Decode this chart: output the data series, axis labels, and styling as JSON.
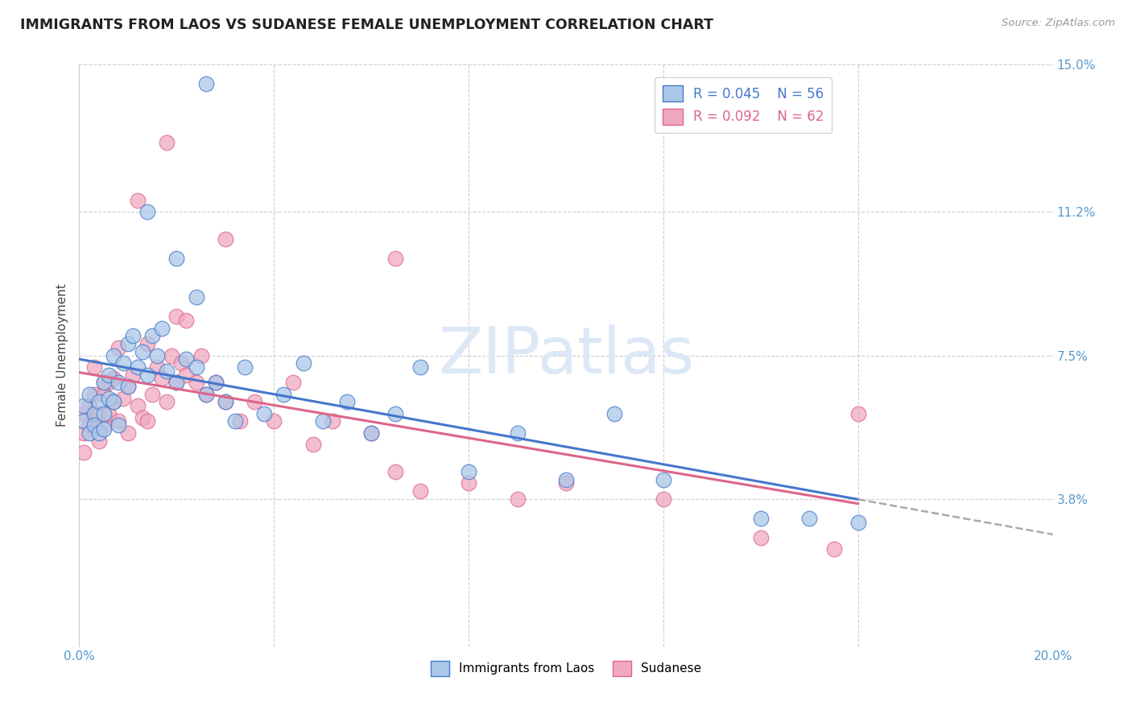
{
  "title": "IMMIGRANTS FROM LAOS VS SUDANESE FEMALE UNEMPLOYMENT CORRELATION CHART",
  "source": "Source: ZipAtlas.com",
  "ylabel": "Female Unemployment",
  "legend_label1": "Immigrants from Laos",
  "legend_label2": "Sudanese",
  "r1": "0.045",
  "n1": "56",
  "r2": "0.092",
  "n2": "62",
  "xlim": [
    0.0,
    0.2
  ],
  "ylim": [
    0.0,
    0.15
  ],
  "color_blue": "#aac8e8",
  "color_pink": "#f0a8c0",
  "line_blue": "#4477cc",
  "line_pink": "#dd6688",
  "line_gray": "#aaaaaa",
  "watermark": "ZIPatlas",
  "ytick_positions": [
    0.038,
    0.075,
    0.112,
    0.15
  ],
  "ytick_labels": [
    "3.8%",
    "7.5%",
    "11.2%",
    "15.0%"
  ],
  "xtick_positions": [
    0.0,
    0.04,
    0.08,
    0.12,
    0.16,
    0.2
  ],
  "xtick_labels": [
    "0.0%",
    "",
    "",
    "",
    "",
    "20.0%"
  ],
  "blue_x": [
    0.001,
    0.001,
    0.002,
    0.002,
    0.003,
    0.003,
    0.004,
    0.004,
    0.005,
    0.005,
    0.005,
    0.006,
    0.006,
    0.007,
    0.007,
    0.008,
    0.008,
    0.009,
    0.01,
    0.01,
    0.011,
    0.012,
    0.013,
    0.014,
    0.015,
    0.016,
    0.017,
    0.018,
    0.02,
    0.022,
    0.024,
    0.026,
    0.028,
    0.03,
    0.032,
    0.034,
    0.038,
    0.042,
    0.046,
    0.05,
    0.055,
    0.06,
    0.065,
    0.07,
    0.08,
    0.09,
    0.1,
    0.11,
    0.12,
    0.14,
    0.15,
    0.16,
    0.014,
    0.02,
    0.024,
    0.026
  ],
  "blue_y": [
    0.062,
    0.058,
    0.055,
    0.065,
    0.06,
    0.057,
    0.063,
    0.055,
    0.068,
    0.06,
    0.056,
    0.064,
    0.07,
    0.063,
    0.075,
    0.068,
    0.057,
    0.073,
    0.067,
    0.078,
    0.08,
    0.072,
    0.076,
    0.07,
    0.08,
    0.075,
    0.082,
    0.071,
    0.068,
    0.074,
    0.072,
    0.065,
    0.068,
    0.063,
    0.058,
    0.072,
    0.06,
    0.065,
    0.073,
    0.058,
    0.063,
    0.055,
    0.06,
    0.072,
    0.045,
    0.055,
    0.043,
    0.06,
    0.043,
    0.033,
    0.033,
    0.032,
    0.112,
    0.1,
    0.09,
    0.145
  ],
  "pink_x": [
    0.001,
    0.001,
    0.001,
    0.002,
    0.002,
    0.003,
    0.003,
    0.004,
    0.004,
    0.005,
    0.005,
    0.006,
    0.006,
    0.007,
    0.007,
    0.008,
    0.009,
    0.01,
    0.01,
    0.011,
    0.012,
    0.013,
    0.014,
    0.015,
    0.016,
    0.017,
    0.018,
    0.019,
    0.02,
    0.021,
    0.022,
    0.024,
    0.026,
    0.028,
    0.03,
    0.033,
    0.036,
    0.04,
    0.044,
    0.048,
    0.052,
    0.06,
    0.065,
    0.07,
    0.08,
    0.09,
    0.1,
    0.12,
    0.14,
    0.16,
    0.014,
    0.02,
    0.025,
    0.03,
    0.005,
    0.008,
    0.012,
    0.065,
    0.155,
    0.003,
    0.018,
    0.022
  ],
  "pink_y": [
    0.055,
    0.05,
    0.06,
    0.057,
    0.062,
    0.065,
    0.058,
    0.053,
    0.06,
    0.065,
    0.057,
    0.068,
    0.06,
    0.063,
    0.069,
    0.058,
    0.064,
    0.067,
    0.055,
    0.07,
    0.062,
    0.059,
    0.058,
    0.065,
    0.072,
    0.069,
    0.063,
    0.075,
    0.068,
    0.073,
    0.07,
    0.068,
    0.065,
    0.068,
    0.063,
    0.058,
    0.063,
    0.058,
    0.068,
    0.052,
    0.058,
    0.055,
    0.045,
    0.04,
    0.042,
    0.038,
    0.042,
    0.038,
    0.028,
    0.06,
    0.078,
    0.085,
    0.075,
    0.105,
    0.068,
    0.077,
    0.115,
    0.1,
    0.025,
    0.072,
    0.13,
    0.084
  ]
}
